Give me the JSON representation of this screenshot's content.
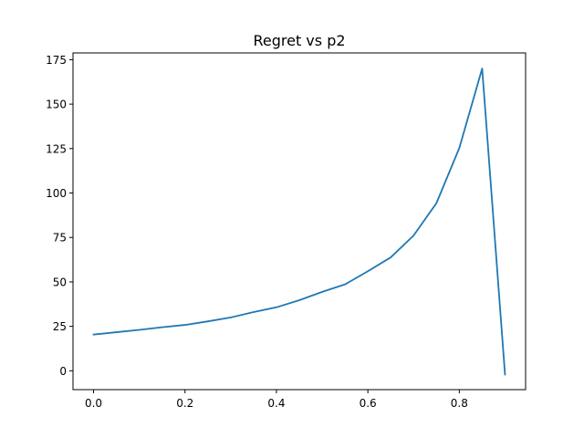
{
  "chart_data": {
    "type": "line",
    "title": "Regret vs p2",
    "xlabel": "",
    "ylabel": "",
    "xlim": [
      -0.045,
      0.945
    ],
    "ylim": [
      -10.6,
      178.8
    ],
    "xticks": [
      0.0,
      0.2,
      0.4,
      0.6,
      0.8
    ],
    "xtick_labels": [
      "0.0",
      "0.2",
      "0.4",
      "0.6",
      "0.8"
    ],
    "yticks": [
      0,
      25,
      50,
      75,
      100,
      125,
      150,
      175
    ],
    "ytick_labels": [
      "0",
      "25",
      "50",
      "75",
      "100",
      "125",
      "150",
      "175"
    ],
    "grid": false,
    "legend": "none",
    "series": [
      {
        "color": "#1f77b4",
        "x": [
          0.0,
          0.05,
          0.1,
          0.15,
          0.2,
          0.25,
          0.3,
          0.35,
          0.4,
          0.45,
          0.5,
          0.55,
          0.6,
          0.65,
          0.7,
          0.75,
          0.8,
          0.85,
          0.9
        ],
        "y": [
          20.4,
          21.7,
          23.0,
          24.5,
          25.8,
          27.8,
          30.0,
          33.0,
          35.7,
          39.7,
          44.4,
          48.6,
          56.0,
          63.8,
          76.1,
          94.3,
          125.3,
          170.0,
          -2.1
        ]
      }
    ]
  }
}
